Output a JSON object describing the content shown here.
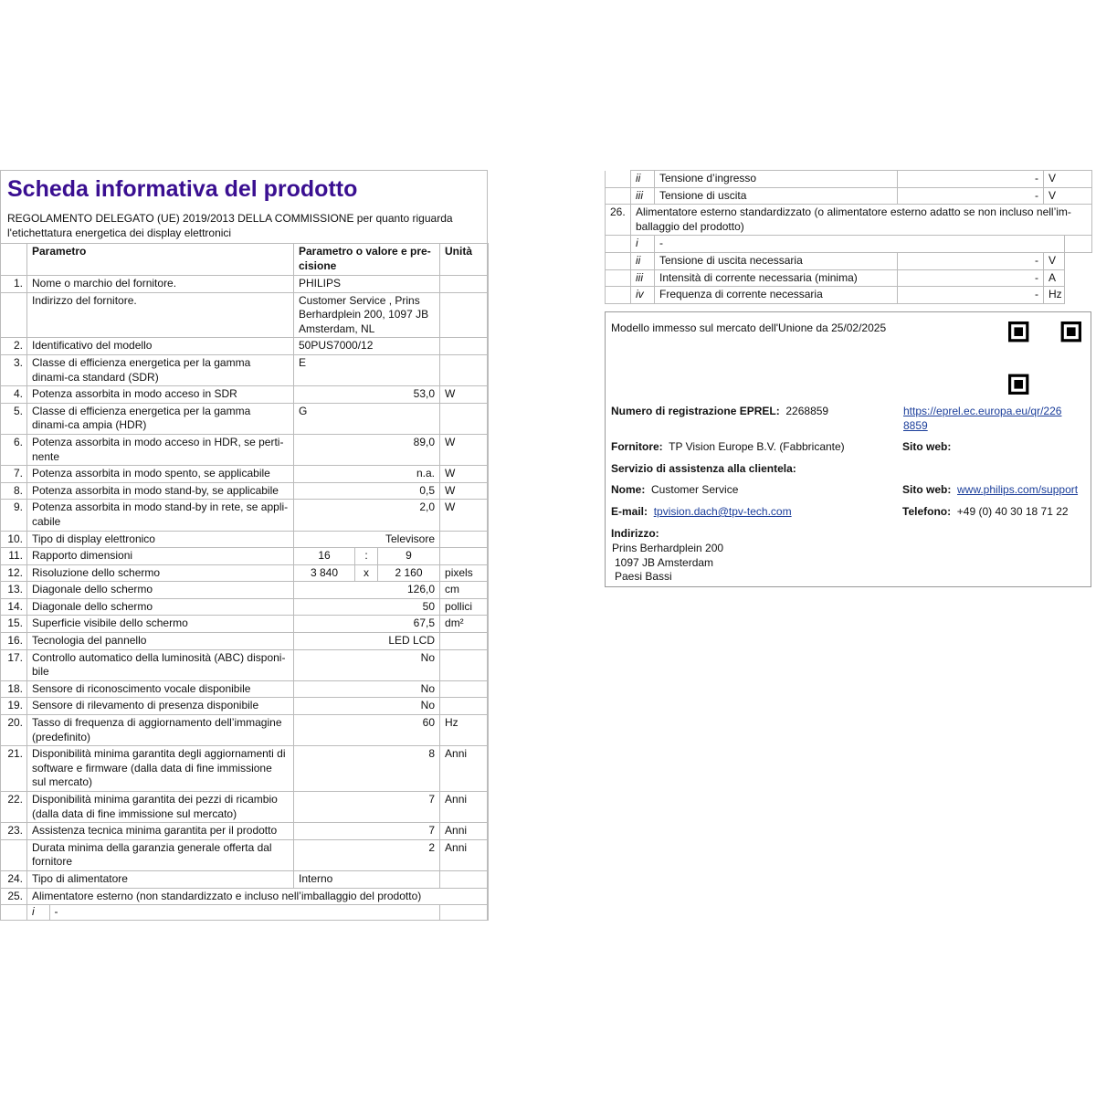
{
  "header": {
    "title": "Scheda informativa del prodotto",
    "subtitle": "REGOLAMENTO DELEGATO (UE) 2019/2013 DELLA COMMISSIONE per quanto riguarda l'etichettatura energetica dei display elettronici"
  },
  "columns": {
    "param": "Parametro",
    "value": "Parametro o valore e pre-cisione",
    "unit": "Unità"
  },
  "rows": [
    {
      "n": "1.",
      "p": "Nome o marchio del fornitore.",
      "v": "PHILIPS",
      "u": "",
      "align": "l"
    },
    {
      "n": "",
      "p": "Indirizzo del fornitore.",
      "v": "Customer Service , Prins Berhardplein 200, 1097 JB Amsterdam, NL",
      "u": "",
      "align": "l"
    },
    {
      "n": "2.",
      "p": "Identificativo del modello",
      "v": "50PUS7000/12",
      "u": "",
      "align": "l"
    },
    {
      "n": "3.",
      "p": "Classe di efficienza energetica per la gamma dinami-ca standard (SDR)",
      "v": "E",
      "u": "",
      "align": "l"
    },
    {
      "n": "4.",
      "p": "Potenza assorbita in modo acceso in SDR",
      "v": "53,0",
      "u": "W",
      "align": "r"
    },
    {
      "n": "5.",
      "p": "Classe di efficienza energetica per la gamma dinami-ca ampia (HDR)",
      "v": "G",
      "u": "",
      "align": "l"
    },
    {
      "n": "6.",
      "p": "Potenza assorbita in modo acceso in HDR, se perti-nente",
      "v": "89,0",
      "u": "W",
      "align": "r"
    },
    {
      "n": "7.",
      "p": "Potenza assorbita in modo spento, se applicabile",
      "v": "n.a.",
      "u": "W",
      "align": "r"
    },
    {
      "n": "8.",
      "p": "Potenza assorbita in modo stand-by, se applicabile",
      "v": "0,5",
      "u": "W",
      "align": "r"
    },
    {
      "n": "9.",
      "p": "Potenza assorbita in modo stand-by in rete, se appli-cabile",
      "v": "2,0",
      "u": "W",
      "align": "r"
    },
    {
      "n": "10.",
      "p": "Tipo di display elettronico",
      "v": "Televisore",
      "u": "",
      "align": "r"
    },
    {
      "n": "11.",
      "p": "Rapporto dimensioni",
      "split": [
        "16",
        ":",
        "9"
      ],
      "u": ""
    },
    {
      "n": "12.",
      "p": "Risoluzione dello schermo",
      "split": [
        "3 840",
        "x",
        "2 160"
      ],
      "u": "pixels"
    },
    {
      "n": "13.",
      "p": "Diagonale dello schermo",
      "v": "126,0",
      "u": "cm",
      "align": "r"
    },
    {
      "n": "14.",
      "p": "Diagonale dello schermo",
      "v": "50",
      "u": "pollici",
      "align": "r"
    },
    {
      "n": "15.",
      "p": "Superficie visibile dello schermo",
      "v": "67,5",
      "u": "dm²",
      "align": "r"
    },
    {
      "n": "16.",
      "p": "Tecnologia del pannello",
      "v": "LED LCD",
      "u": "",
      "align": "r"
    },
    {
      "n": "17.",
      "p": "Controllo automatico della luminosità (ABC) disponi-bile",
      "v": "No",
      "u": "",
      "align": "r"
    },
    {
      "n": "18.",
      "p": "Sensore di riconoscimento vocale disponibile",
      "v": "No",
      "u": "",
      "align": "r"
    },
    {
      "n": "19.",
      "p": "Sensore di rilevamento di presenza disponibile",
      "v": "No",
      "u": "",
      "align": "r"
    },
    {
      "n": "20.",
      "p": "Tasso di frequenza di aggiornamento dell’immagine (predefinito)",
      "v": "60",
      "u": "Hz",
      "align": "r"
    },
    {
      "n": "21.",
      "p": "Disponibilità minima garantita degli aggiornamenti di software e firmware (dalla data di fine immissione sul mercato)",
      "v": "8",
      "u": "Anni",
      "align": "r"
    },
    {
      "n": "22.",
      "p": "Disponibilità minima garantita dei pezzi di ricambio (dalla data di fine immissione sul mercato)",
      "v": "7",
      "u": "Anni",
      "align": "r"
    },
    {
      "n": "23.",
      "p": "Assistenza tecnica minima garantita per il prodotto",
      "v": "7",
      "u": "Anni",
      "align": "r"
    },
    {
      "n": "",
      "p": "Durata minima della garanzia generale offerta dal fornitore",
      "v": "2",
      "u": "Anni",
      "align": "r"
    },
    {
      "n": "24.",
      "p": "Tipo di alimentatore",
      "v": "Interno",
      "u": "",
      "align": "l"
    }
  ],
  "row25": {
    "n": "25.",
    "p": "Alimentatore esterno (non standardizzato e incluso nell’imballaggio del prodotto)",
    "sub": {
      "r": "i",
      "v": "-"
    }
  },
  "right_table": {
    "top": [
      {
        "r": "ii",
        "p": "Tensione d’ingresso",
        "v": "-",
        "u": "V"
      },
      {
        "r": "iii",
        "p": "Tensione di uscita",
        "v": "-",
        "u": "V"
      }
    ],
    "row26": {
      "n": "26.",
      "p": "Alimentatore esterno standardizzato (o alimentatore esterno adatto se non incluso nell’im-ballaggio del prodotto)"
    },
    "sub_i": {
      "r": "i",
      "v": "-"
    },
    "subs": [
      {
        "r": "ii",
        "p": "Tensione di uscita necessaria",
        "v": "-",
        "u": "V"
      },
      {
        "r": "iii",
        "p": "Intensità di corrente necessaria (minima)",
        "v": "-",
        "u": "A"
      },
      {
        "r": "iv",
        "p": "Frequenza di corrente necessaria",
        "v": "-",
        "u": "Hz"
      }
    ]
  },
  "info": {
    "market": "Modello immesso sul mercato dell'Unione da 25/02/2025",
    "eprel_label": "Numero di registrazione EPREL:",
    "eprel": "2268859",
    "eprel_link": "https://eprel.ec.europa.eu/qr/2268859",
    "supplier_label": "Fornitore:",
    "supplier": "TP Vision Europe B.V. (Fabbricante)",
    "site_label": "Sito web:",
    "service_label": "Servizio di assistenza alla clientela:",
    "name_label": "Nome:",
    "name": "Customer Service",
    "site2_label": "Sito web:",
    "site2": "www.philips.com/support",
    "email_label": "E-mail:",
    "email": "tpvision.dach@tpv-tech.com",
    "phone_label": "Telefono:",
    "phone": "+49 (0) 40 30 18 71 22",
    "address_label": "Indirizzo:",
    "address1": "Prins Berhardplein 200",
    "address2": "1097 JB Amsterdam",
    "address3": "Paesi Bassi",
    "qr_icon": "qr-code"
  }
}
